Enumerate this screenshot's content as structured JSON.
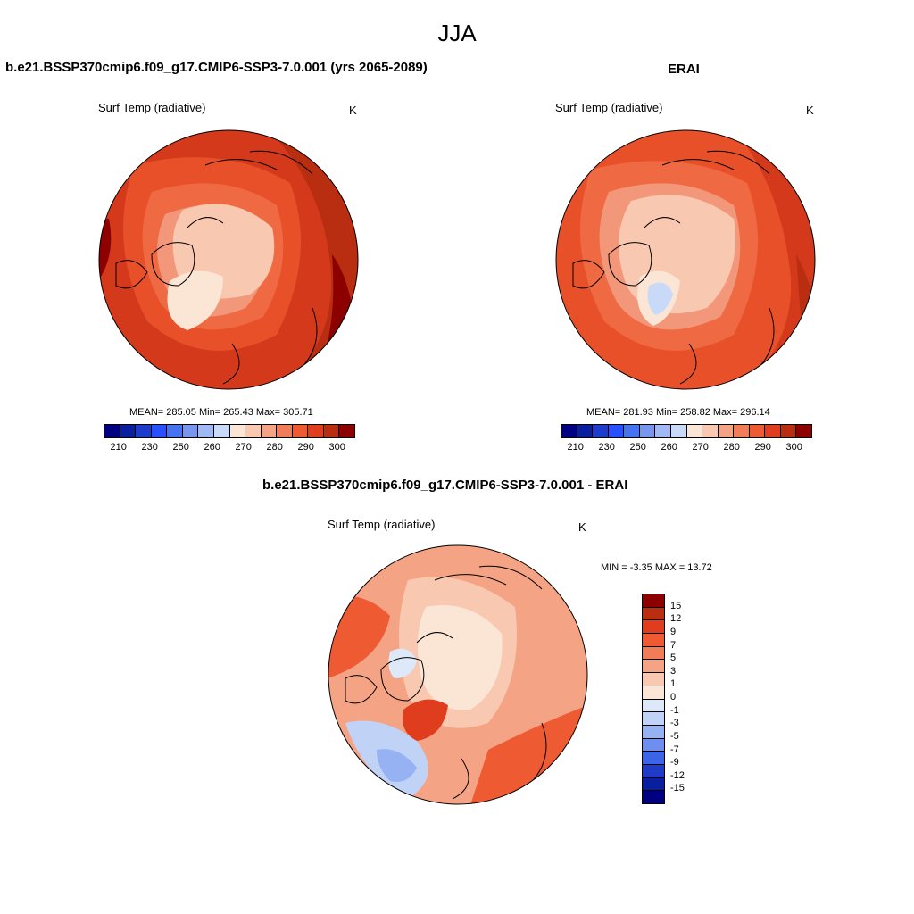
{
  "figure": {
    "title": "JJA"
  },
  "panels": [
    {
      "title": "b.e21.BSSP370cmip6.f09_g17.CMIP6-SSP3-7.0.001 (yrs 2065-2089)",
      "variable": "Surf Temp (radiative)",
      "units": "K",
      "stats": "MEAN= 285.05  Min= 265.43  Max= 305.71"
    },
    {
      "title": "ERAI",
      "variable": "Surf Temp (radiative)",
      "units": "K",
      "stats": "MEAN= 281.93  Min= 258.82  Max= 296.14"
    },
    {
      "title": "b.e21.BSSP370cmip6.f09_g17.CMIP6-SSP3-7.0.001 - ERAI",
      "variable": "Surf Temp (radiative)",
      "units": "K",
      "stats": "MIN =  -3.35 MAX =  13.72"
    }
  ],
  "colorbar_abs": {
    "tick_labels": [
      "210",
      "230",
      "250",
      "260",
      "270",
      "280",
      "290",
      "300"
    ],
    "colors": [
      "#000080",
      "#0a1ea0",
      "#1e3ccc",
      "#2850ff",
      "#4673f0",
      "#7896f0",
      "#a0b9f5",
      "#c8daf8",
      "#fbe6d6",
      "#f8c8b0",
      "#f4a384",
      "#f07c58",
      "#ee5a32",
      "#e03c1e",
      "#b92d10",
      "#8c0000"
    ]
  },
  "colorbar_diff": {
    "tick_labels": [
      "15",
      "12",
      "9",
      "7",
      "5",
      "3",
      "1",
      "0",
      "-1",
      "-3",
      "-5",
      "-7",
      "-9",
      "-12",
      "-15"
    ],
    "colors": [
      "#8c0000",
      "#b92d10",
      "#e03c1e",
      "#ee5a32",
      "#f07c58",
      "#f4a384",
      "#f8c8b0",
      "#fbe6d6",
      "#dde8f8",
      "#c0d3f7",
      "#96b2f2",
      "#6e8ff0",
      "#3c64e6",
      "#1e3cc8",
      "#0a1ea0",
      "#000080"
    ]
  },
  "map_colors": {
    "c300": "#8c0000",
    "c295": "#b92d10",
    "c290": "#d3391a",
    "c285": "#e8502a",
    "c280": "#ef6a42",
    "c275": "#f3977a",
    "c270": "#f8c8b0",
    "c265": "#fbe6d6",
    "c260": "#c8daf8",
    "land": "#000000"
  }
}
